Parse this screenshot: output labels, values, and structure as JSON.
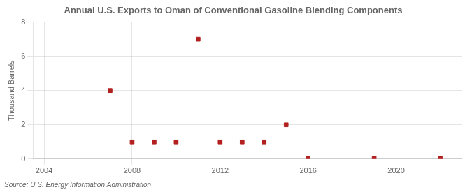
{
  "chart_data": {
    "type": "scatter",
    "title": "Annual U.S. Exports to Oman of Conventional Gasoline Blending Components",
    "y_label": "Thousand Barrels",
    "annotations": [
      "Source: U.S. Energy Information Administration"
    ],
    "x": [
      2007,
      2008,
      2009,
      2010,
      2011,
      2012,
      2013,
      2014,
      2015,
      2016,
      2019,
      2022
    ],
    "values": [
      4,
      1,
      1,
      1,
      7,
      1,
      1,
      1,
      2,
      0.05,
      0.05,
      0.05
    ],
    "color": "#b22020",
    "marker": "square",
    "xlim": [
      2003.5,
      2023
    ],
    "xticks": [
      2004,
      2008,
      2012,
      2016,
      2020
    ],
    "ylim": [
      0,
      8
    ],
    "yticks": [
      0,
      2,
      4,
      6,
      8
    ],
    "grid": true
  }
}
